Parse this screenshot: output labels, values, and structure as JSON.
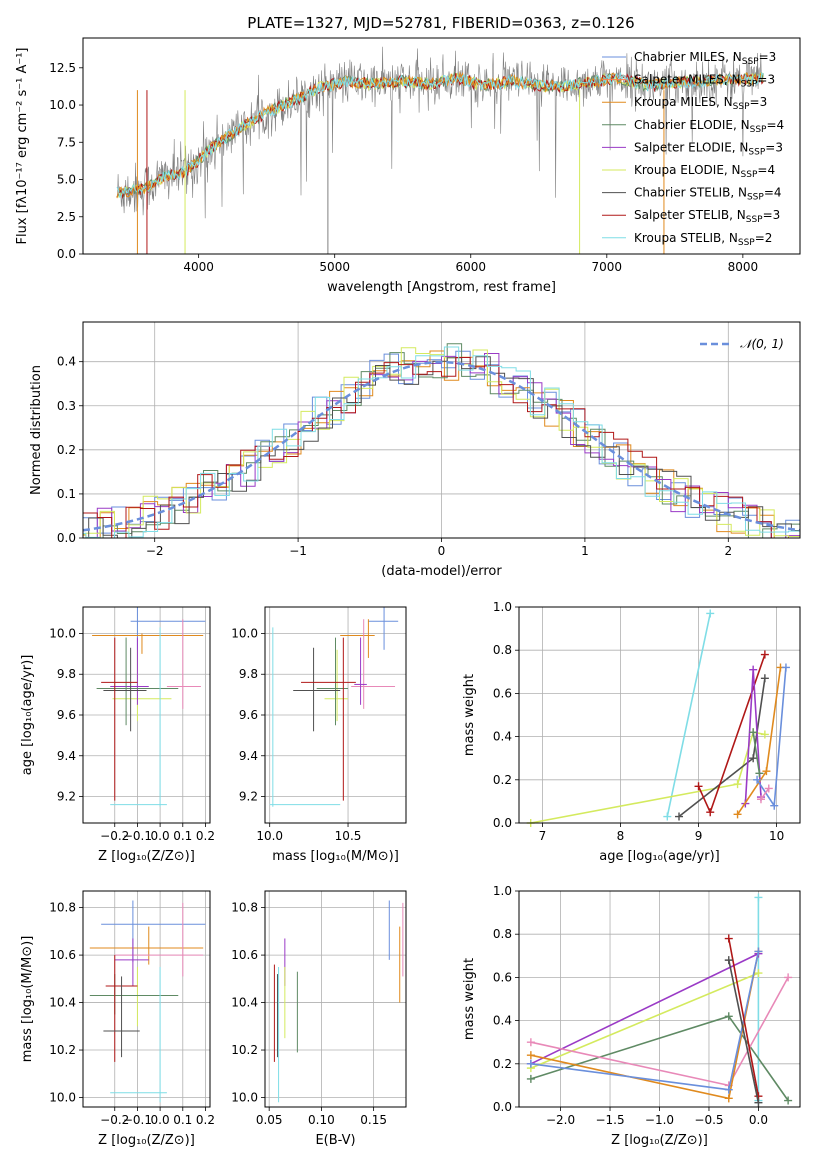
{
  "figure_title": "PLATE=1327, MJD=52781, FIBERID=0363, z=0.126",
  "colors": {
    "Chabrier MILES": "#6a8fdc",
    "Salpeter MILES": "#ff7f50",
    "Kroupa MILES": "#e08a1e",
    "Chabrier ELODIE": "#5f8a64",
    "Salpeter ELODIE": "#9a3ac6",
    "Kroupa ELODIE": "#d4ea5e",
    "Chabrier STELIB": "#505050",
    "Salpeter STELIB": "#b01818",
    "Kroupa STELIB": "#7fdde6",
    "data": "#808080",
    "pink": "#e889b8",
    "orange2": "#e67e22",
    "normal": "#6a8fdc"
  },
  "chart_data": [
    {
      "id": "spectrum",
      "type": "line",
      "title": "PLATE=1327, MJD=52781, FIBERID=0363, z=0.126",
      "xlabel": "wavelength [Angstrom, rest frame]",
      "ylabel": "Flux [fλ10⁻¹⁷ erg cm⁻² s⁻¹ A⁻¹]",
      "xlim": [
        3150,
        8420
      ],
      "ylim": [
        0,
        14.5
      ],
      "xticks": [
        "4000",
        "5000",
        "6000",
        "7000",
        "8000"
      ],
      "yticks": [
        "0.0",
        "2.5",
        "5.0",
        "7.5",
        "10.0",
        "12.5"
      ],
      "legend": [
        "Chabrier MILES, N_SSP=3",
        "Salpeter MILES, N_SSP=3",
        "Kroupa MILES, N_SSP=3",
        "Chabrier ELODIE, N_SSP=4",
        "Salpeter ELODIE, N_SSP=3",
        "Kroupa ELODIE, N_SSP=4",
        "Chabrier STELIB, N_SSP=4",
        "Salpeter STELIB, N_SSP=3",
        "Kroupa STELIB, N_SSP=2"
      ],
      "legend_placement": "upper right",
      "continuum": [
        [
          3400,
          4.1
        ],
        [
          3600,
          4.4
        ],
        [
          3750,
          5.2
        ],
        [
          3900,
          5.5
        ],
        [
          4000,
          6.3
        ],
        [
          4100,
          7.2
        ],
        [
          4300,
          8.4
        ],
        [
          4500,
          9.5
        ],
        [
          4700,
          10.3
        ],
        [
          4900,
          11.2
        ],
        [
          5100,
          11.6
        ],
        [
          5300,
          11.4
        ],
        [
          5500,
          11.6
        ],
        [
          5700,
          11.4
        ],
        [
          5900,
          11.8
        ],
        [
          6100,
          11.3
        ],
        [
          6300,
          11.6
        ],
        [
          6500,
          11.3
        ],
        [
          6700,
          11.3
        ],
        [
          6900,
          11.6
        ],
        [
          7100,
          11.8
        ],
        [
          7300,
          11.3
        ],
        [
          7500,
          11.5
        ],
        [
          7700,
          11.6
        ],
        [
          7900,
          11.7
        ],
        [
          8150,
          11.8
        ]
      ],
      "grid": false
    },
    {
      "id": "residuals",
      "type": "histogram",
      "xlabel": "(data-model)/error",
      "ylabel": "Normed distribution",
      "xlim": [
        -2.5,
        2.5
      ],
      "ylim": [
        0,
        0.49
      ],
      "xticks": [
        "−2",
        "−1",
        "0",
        "1",
        "2"
      ],
      "yticks": [
        "0.0",
        "0.1",
        "0.2",
        "0.3",
        "0.4"
      ],
      "bin_width": 0.1,
      "legend": [
        "𝒩(0, 1)"
      ],
      "legend_placement": "upper right",
      "normal": {
        "mean": 0,
        "sigma": 1
      },
      "grid": true
    },
    {
      "id": "age-vs-Z",
      "type": "errorbar",
      "xlabel": "Z [log₁₀(Z/Z⊙)]",
      "ylabel": "age  [log₁₀(age/yr)]",
      "xlim": [
        -0.34,
        0.22
      ],
      "ylim": [
        9.07,
        10.13
      ],
      "xticks": [
        "−0.2",
        "−0.1",
        "0.0",
        "0.1",
        "0.2"
      ],
      "yticks": [
        "9.2",
        "9.4",
        "9.6",
        "9.8",
        "10.0"
      ],
      "points": [
        {
          "c": "Chabrier MILES",
          "x": -0.1,
          "xe": [
            -0.13,
            0.2
          ],
          "y": 10.06,
          "ye": [
            9.92,
            10.13
          ]
        },
        {
          "c": "Kroupa MILES",
          "x": -0.08,
          "xe": [
            -0.3,
            0.19
          ],
          "y": 9.99,
          "ye": [
            9.9,
            10.0
          ]
        },
        {
          "c": "pink",
          "x": 0.1,
          "xe": [
            0.03,
            0.18
          ],
          "y": 9.74,
          "ye": [
            9.63,
            10.07
          ]
        },
        {
          "c": "Kroupa ELODIE",
          "x": -0.1,
          "xe": [
            -0.21,
            0.05
          ],
          "y": 9.68,
          "ye": [
            9.57,
            9.92
          ]
        },
        {
          "c": "Salpeter ELODIE",
          "x": -0.1,
          "xe": [
            -0.22,
            -0.05
          ],
          "y": 9.74,
          "ye": [
            9.65,
            9.98
          ]
        },
        {
          "c": "Chabrier ELODIE",
          "x": -0.15,
          "xe": [
            -0.28,
            0.08
          ],
          "y": 9.73,
          "ye": [
            9.55,
            9.98
          ]
        },
        {
          "c": "Chabrier STELIB",
          "x": -0.13,
          "xe": [
            -0.25,
            -0.06
          ],
          "y": 9.72,
          "ye": [
            9.52,
            9.93
          ]
        },
        {
          "c": "Salpeter STELIB",
          "x": -0.2,
          "xe": [
            -0.26,
            -0.1
          ],
          "y": 9.76,
          "ye": [
            9.18,
            9.98
          ]
        },
        {
          "c": "Kroupa STELIB",
          "x": 0.0,
          "xe": [
            -0.22,
            0.03
          ],
          "y": 9.16,
          "ye": [
            9.15,
            10.03
          ]
        }
      ]
    },
    {
      "id": "age-vs-mass",
      "type": "errorbar",
      "xlabel": "mass [log₁₀(M/M⊙)]",
      "ylabel": "",
      "xlim": [
        9.97,
        10.87
      ],
      "ylim": [
        9.07,
        10.13
      ],
      "xticks": [
        "10.0",
        "10.5"
      ],
      "yticks": [
        "9.2",
        "9.4",
        "9.6",
        "9.8",
        "10.0"
      ],
      "points": [
        {
          "c": "Chabrier MILES",
          "x": 10.73,
          "xe": [
            10.63,
            10.82
          ],
          "y": 10.06,
          "ye": [
            9.92,
            10.13
          ]
        },
        {
          "c": "Kroupa MILES",
          "x": 10.63,
          "xe": [
            10.45,
            10.67
          ],
          "y": 9.99,
          "ye": [
            9.88,
            10.07
          ]
        },
        {
          "c": "pink",
          "x": 10.6,
          "xe": [
            10.52,
            10.8
          ],
          "y": 9.74,
          "ye": [
            9.63,
            10.07
          ]
        },
        {
          "c": "Kroupa ELODIE",
          "x": 10.43,
          "xe": [
            10.35,
            10.5
          ],
          "y": 9.68,
          "ye": [
            9.57,
            9.92
          ]
        },
        {
          "c": "Salpeter ELODIE",
          "x": 10.58,
          "xe": [
            10.54,
            10.62
          ],
          "y": 9.75,
          "ye": [
            9.65,
            9.98
          ]
        },
        {
          "c": "Chabrier ELODIE",
          "x": 10.42,
          "xe": [
            10.3,
            10.5
          ],
          "y": 9.73,
          "ye": [
            9.55,
            9.98
          ]
        },
        {
          "c": "Chabrier STELIB",
          "x": 10.28,
          "xe": [
            10.15,
            10.45
          ],
          "y": 9.72,
          "ye": [
            9.52,
            9.93
          ]
        },
        {
          "c": "Salpeter STELIB",
          "x": 10.47,
          "xe": [
            10.2,
            10.55
          ],
          "y": 9.76,
          "ye": [
            9.18,
            9.98
          ]
        },
        {
          "c": "Kroupa STELIB",
          "x": 10.02,
          "xe": [
            10.0,
            10.45
          ],
          "y": 9.16,
          "ye": [
            9.15,
            10.03
          ]
        }
      ]
    },
    {
      "id": "massweight-vs-age",
      "type": "line",
      "xlabel": "age  [log₁₀(age/yr)]",
      "ylabel": "mass weight",
      "xlim": [
        6.7,
        10.3
      ],
      "ylim": [
        0,
        1.0
      ],
      "xticks": [
        "7",
        "8",
        "9",
        "10"
      ],
      "yticks": [
        "0.0",
        "0.2",
        "0.4",
        "0.6",
        "0.8",
        "1.0"
      ],
      "series": [
        {
          "c": "Kroupa STELIB",
          "x": [
            8.6,
            9.15
          ],
          "y": [
            0.03,
            0.97
          ]
        },
        {
          "c": "Kroupa ELODIE",
          "x": [
            6.85,
            9.5,
            9.7,
            9.85
          ],
          "y": [
            0.0,
            0.18,
            0.42,
            0.41
          ]
        },
        {
          "c": "Chabrier STELIB",
          "x": [
            8.75,
            9.7,
            9.85
          ],
          "y": [
            0.03,
            0.3,
            0.67
          ]
        },
        {
          "c": "Salpeter STELIB",
          "x": [
            9.0,
            9.15,
            9.85
          ],
          "y": [
            0.17,
            0.05,
            0.78
          ]
        },
        {
          "c": "Salpeter ELODIE",
          "x": [
            9.6,
            9.7,
            9.8
          ],
          "y": [
            0.09,
            0.71,
            0.12
          ]
        },
        {
          "c": "Chabrier ELODIE",
          "x": [
            9.7,
            9.78
          ],
          "y": [
            0.42,
            0.23
          ]
        },
        {
          "c": "Kroupa MILES",
          "x": [
            9.5,
            9.87,
            10.05
          ],
          "y": [
            0.04,
            0.24,
            0.72
          ]
        },
        {
          "c": "Chabrier MILES",
          "x": [
            9.75,
            9.97,
            10.12
          ],
          "y": [
            0.2,
            0.08,
            0.72
          ]
        },
        {
          "c": "pink",
          "x": [
            9.8,
            9.9
          ],
          "y": [
            0.11,
            0.16
          ]
        }
      ]
    },
    {
      "id": "mass-vs-Z",
      "type": "errorbar",
      "xlabel": "Z [log₁₀(Z/Z⊙)]",
      "ylabel": "mass [log₁₀(M/M⊙)]",
      "xlim": [
        -0.34,
        0.22
      ],
      "ylim": [
        9.96,
        10.87
      ],
      "xticks": [
        "−0.2",
        "−0.1",
        "0.0",
        "0.1",
        "0.2"
      ],
      "yticks": [
        "10.0",
        "10.2",
        "10.4",
        "10.6",
        "10.8"
      ],
      "points": [
        {
          "c": "Chabrier MILES",
          "x": -0.12,
          "xe": [
            -0.26,
            0.2
          ],
          "y": 10.73,
          "ye": [
            10.57,
            10.83
          ]
        },
        {
          "c": "Kroupa MILES",
          "x": -0.05,
          "xe": [
            -0.31,
            0.19
          ],
          "y": 10.63,
          "ye": [
            10.56,
            10.72
          ]
        },
        {
          "c": "pink",
          "x": 0.1,
          "xe": [
            -0.2,
            0.19
          ],
          "y": 10.6,
          "ye": [
            10.51,
            10.82
          ]
        },
        {
          "c": "Salpeter ELODIE",
          "x": -0.12,
          "xe": [
            -0.2,
            -0.05
          ],
          "y": 10.58,
          "ye": [
            10.47,
            10.67
          ]
        },
        {
          "c": "Kroupa ELODIE",
          "x": -0.1,
          "xe": [
            -0.28,
            -0.03
          ],
          "y": 10.43,
          "ye": [
            10.3,
            10.55
          ]
        },
        {
          "c": "Chabrier ELODIE",
          "x": -0.2,
          "xe": [
            -0.31,
            0.08
          ],
          "y": 10.43,
          "ye": [
            10.35,
            10.52
          ]
        },
        {
          "c": "Salpeter STELIB",
          "x": -0.2,
          "xe": [
            -0.24,
            -0.1
          ],
          "y": 10.47,
          "ye": [
            10.15,
            10.6
          ]
        },
        {
          "c": "Chabrier STELIB",
          "x": -0.17,
          "xe": [
            -0.25,
            -0.09
          ],
          "y": 10.28,
          "ye": [
            10.17,
            10.51
          ]
        },
        {
          "c": "Kroupa STELIB",
          "x": 0.0,
          "xe": [
            -0.22,
            0.03
          ],
          "y": 10.02,
          "ye": [
            9.98,
            10.55
          ]
        }
      ]
    },
    {
      "id": "mass-vs-ebv",
      "type": "errorbar",
      "xlabel": "E(B-V)",
      "ylabel": "",
      "xlim": [
        0.046,
        0.181
      ],
      "ylim": [
        9.96,
        10.87
      ],
      "xticks": [
        "0.05",
        "0.10",
        "0.15"
      ],
      "yticks": [
        "10.0",
        "10.2",
        "10.4",
        "10.6",
        "10.8"
      ],
      "points": [
        {
          "c": "Chabrier MILES",
          "x": 0.165,
          "ye": [
            10.58,
            10.83
          ]
        },
        {
          "c": "pink",
          "x": 0.178,
          "ye": [
            10.51,
            10.82
          ]
        },
        {
          "c": "Kroupa MILES",
          "x": 0.175,
          "ye": [
            10.4,
            10.72
          ]
        },
        {
          "c": "Salpeter ELODIE",
          "x": 0.065,
          "ye": [
            10.47,
            10.67
          ]
        },
        {
          "c": "Kroupa ELODIE",
          "x": 0.065,
          "ye": [
            10.25,
            10.55
          ]
        },
        {
          "c": "Chabrier ELODIE",
          "x": 0.077,
          "ye": [
            10.19,
            10.53
          ]
        },
        {
          "c": "Salpeter STELIB",
          "x": 0.055,
          "ye": [
            10.15,
            10.56
          ]
        },
        {
          "c": "Chabrier STELIB",
          "x": 0.058,
          "ye": [
            10.17,
            10.52
          ]
        },
        {
          "c": "Kroupa STELIB",
          "x": 0.059,
          "ye": [
            9.98,
            10.55
          ]
        }
      ]
    },
    {
      "id": "massweight-vs-Z",
      "type": "line",
      "xlabel": "Z [log₁₀(Z/Z⊙)]",
      "ylabel": "mass weight",
      "xlim": [
        -2.42,
        0.42
      ],
      "ylim": [
        0,
        1.0
      ],
      "xticks": [
        "−2.0",
        "−1.5",
        "−1.0",
        "−0.5",
        "0.0"
      ],
      "yticks": [
        "0.0",
        "0.2",
        "0.4",
        "0.6",
        "0.8",
        "1.0"
      ],
      "series": [
        {
          "c": "Kroupa STELIB",
          "x": [
            0.0,
            0.0
          ],
          "y": [
            0.03,
            0.97
          ]
        },
        {
          "c": "Salpeter ELODIE",
          "x": [
            -2.3,
            0.0
          ],
          "y": [
            0.2,
            0.71
          ]
        },
        {
          "c": "Kroupa ELODIE",
          "x": [
            -2.3,
            0.0
          ],
          "y": [
            0.18,
            0.62
          ]
        },
        {
          "c": "Chabrier ELODIE",
          "x": [
            -2.3,
            -0.3,
            0.3
          ],
          "y": [
            0.13,
            0.42,
            0.03
          ]
        },
        {
          "c": "pink",
          "x": [
            -2.3,
            -0.3,
            0.3
          ],
          "y": [
            0.3,
            0.1,
            0.6
          ]
        },
        {
          "c": "Kroupa MILES",
          "x": [
            -2.3,
            -0.3,
            0.0
          ],
          "y": [
            0.24,
            0.04,
            0.72
          ]
        },
        {
          "c": "Chabrier MILES",
          "x": [
            -2.3,
            -0.3,
            0.0
          ],
          "y": [
            0.2,
            0.08,
            0.72
          ]
        },
        {
          "c": "Salpeter STELIB",
          "x": [
            -0.3,
            0.0
          ],
          "y": [
            0.78,
            0.05
          ]
        },
        {
          "c": "Chabrier STELIB",
          "x": [
            -0.3,
            0.0
          ],
          "y": [
            0.68,
            0.02
          ]
        }
      ]
    }
  ]
}
